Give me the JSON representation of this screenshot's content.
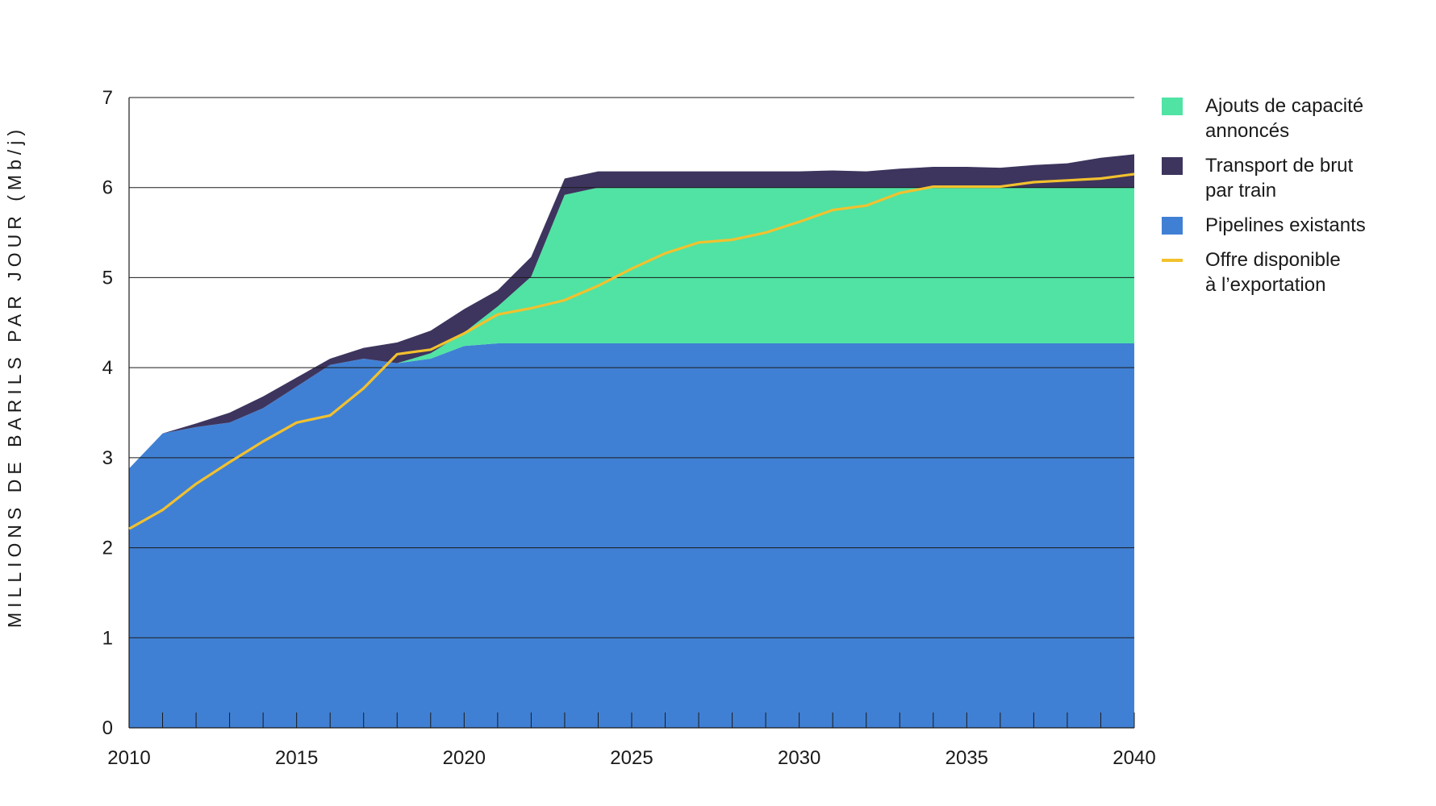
{
  "chart_data": {
    "type": "area",
    "ylabel": "MILLIONS DE BARILS PAR JOUR (Mb/j)",
    "xlabel": "",
    "xlim": [
      2010,
      2040
    ],
    "ylim": [
      0,
      7
    ],
    "yticks": [
      0,
      1,
      2,
      3,
      4,
      5,
      6,
      7
    ],
    "xticks": [
      2010,
      2015,
      2020,
      2025,
      2030,
      2035,
      2040
    ],
    "grid": true,
    "legend_position": "right",
    "x": [
      2010,
      2011,
      2012,
      2013,
      2014,
      2015,
      2016,
      2017,
      2018,
      2019,
      2020,
      2021,
      2022,
      2023,
      2024,
      2025,
      2026,
      2027,
      2028,
      2029,
      2030,
      2031,
      2032,
      2033,
      2034,
      2035,
      2036,
      2037,
      2038,
      2039,
      2040
    ],
    "series": [
      {
        "name": "Pipelines existants",
        "kind": "stacked-area",
        "color": "#4080d4",
        "values": [
          2.88,
          3.27,
          3.34,
          3.39,
          3.55,
          3.79,
          4.03,
          4.1,
          4.05,
          4.1,
          4.24,
          4.27,
          4.27,
          4.27,
          4.27,
          4.27,
          4.27,
          4.27,
          4.27,
          4.27,
          4.27,
          4.27,
          4.27,
          4.27,
          4.27,
          4.27,
          4.27,
          4.27,
          4.27,
          4.27,
          4.27
        ]
      },
      {
        "name": "Ajouts de capacité annoncés",
        "kind": "stacked-area",
        "color": "#50e3a4",
        "values": [
          0,
          0,
          0,
          0,
          0,
          0,
          0,
          0,
          0,
          0.06,
          0.15,
          0.41,
          0.74,
          1.65,
          1.73,
          1.73,
          1.73,
          1.73,
          1.73,
          1.73,
          1.73,
          1.73,
          1.73,
          1.73,
          1.73,
          1.73,
          1.73,
          1.73,
          1.73,
          1.73,
          1.73
        ]
      },
      {
        "name": "Transport de brut par train",
        "kind": "stacked-area",
        "color": "#3d355e",
        "values": [
          0,
          0,
          0.04,
          0.11,
          0.13,
          0.1,
          0.07,
          0.12,
          0.23,
          0.25,
          0.26,
          0.18,
          0.22,
          0.18,
          0.18,
          0.18,
          0.18,
          0.18,
          0.18,
          0.18,
          0.18,
          0.19,
          0.18,
          0.21,
          0.23,
          0.23,
          0.22,
          0.25,
          0.27,
          0.33,
          0.37
        ]
      },
      {
        "name": "Offre disponible à l’exportation",
        "kind": "line",
        "color": "#f2c12e",
        "values": [
          2.21,
          2.42,
          2.71,
          2.95,
          3.18,
          3.39,
          3.47,
          3.77,
          4.15,
          4.2,
          4.38,
          4.59,
          4.66,
          4.75,
          4.91,
          5.1,
          5.27,
          5.39,
          5.42,
          5.5,
          5.62,
          5.75,
          5.8,
          5.94,
          6.01,
          6.01,
          6.01,
          6.06,
          6.08,
          6.1,
          6.15
        ]
      }
    ]
  },
  "legend": [
    {
      "label": "Ajouts de capacité\nannoncés",
      "color": "#50e3a4",
      "kind": "box"
    },
    {
      "label": "Transport de brut\npar train",
      "color": "#3d355e",
      "kind": "box"
    },
    {
      "label": "Pipelines existants",
      "color": "#4080d4",
      "kind": "box"
    },
    {
      "label": "Offre disponible\nà l’exportation",
      "color": "#f2c12e",
      "kind": "line"
    }
  ]
}
